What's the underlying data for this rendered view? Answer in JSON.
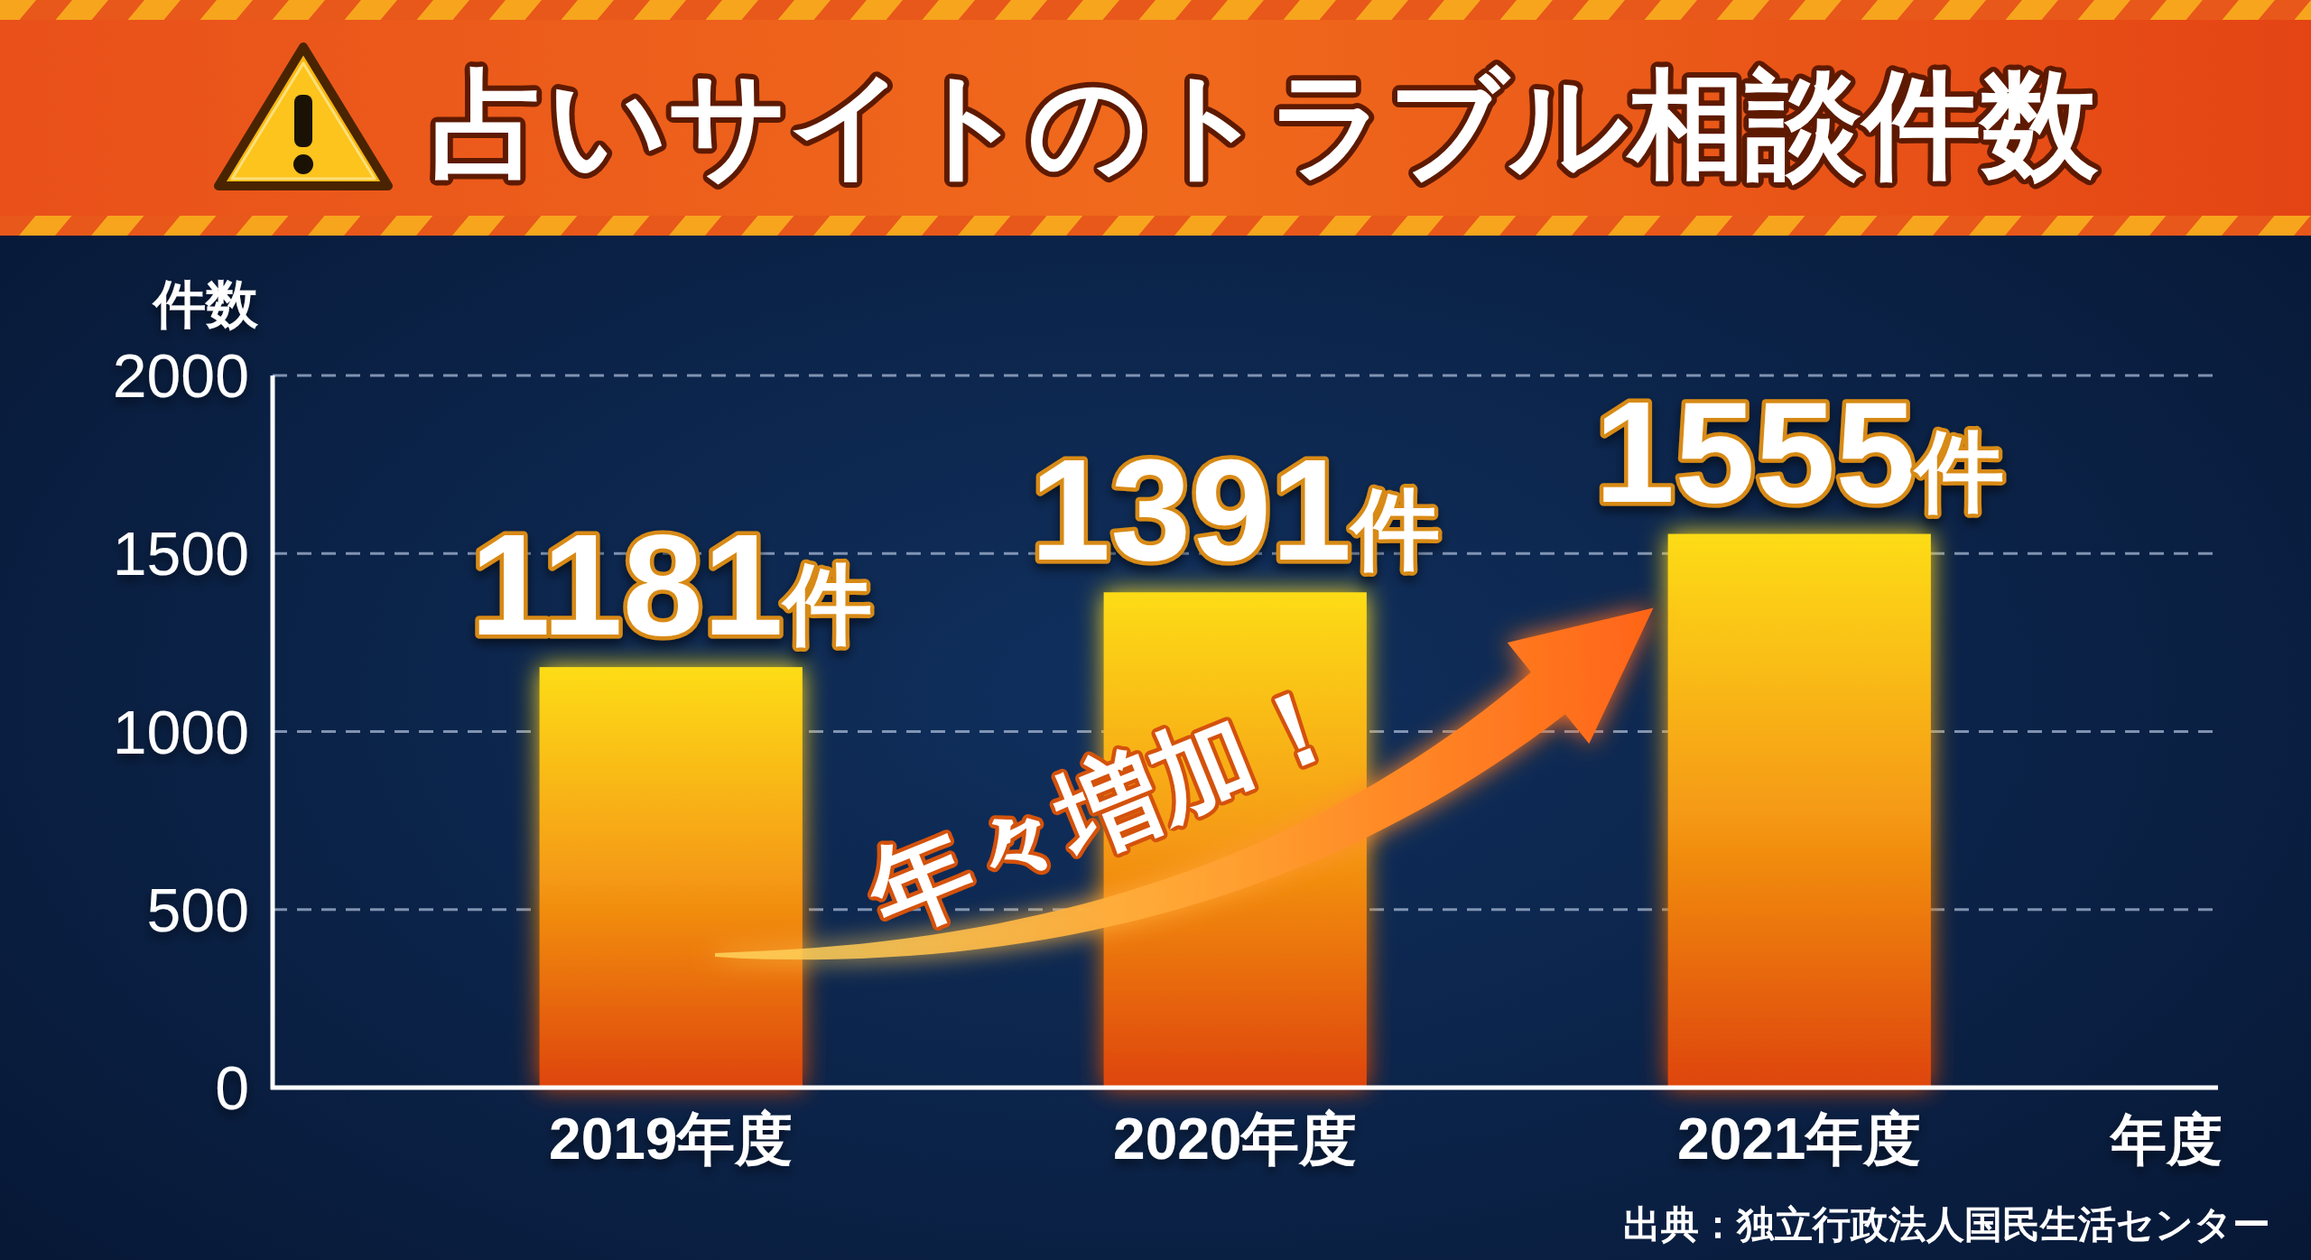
{
  "chart_data": {
    "type": "bar",
    "title": "占いサイトのトラブル相談件数",
    "ylabel": "件数",
    "xlabel": "年度",
    "categories": [
      "2019年度",
      "2020年度",
      "2021年度"
    ],
    "values": [
      1181,
      1391,
      1555
    ],
    "value_labels": [
      "1181件",
      "1391件",
      "1555件"
    ],
    "color": "#f59a12",
    "ylim": [
      0,
      2000
    ],
    "yticks": [
      0,
      500,
      1000,
      1500,
      2000
    ],
    "grid": "y",
    "annotations": [
      "年々増加！",
      "出典：独立行政法人国民生活センター"
    ]
  }
}
